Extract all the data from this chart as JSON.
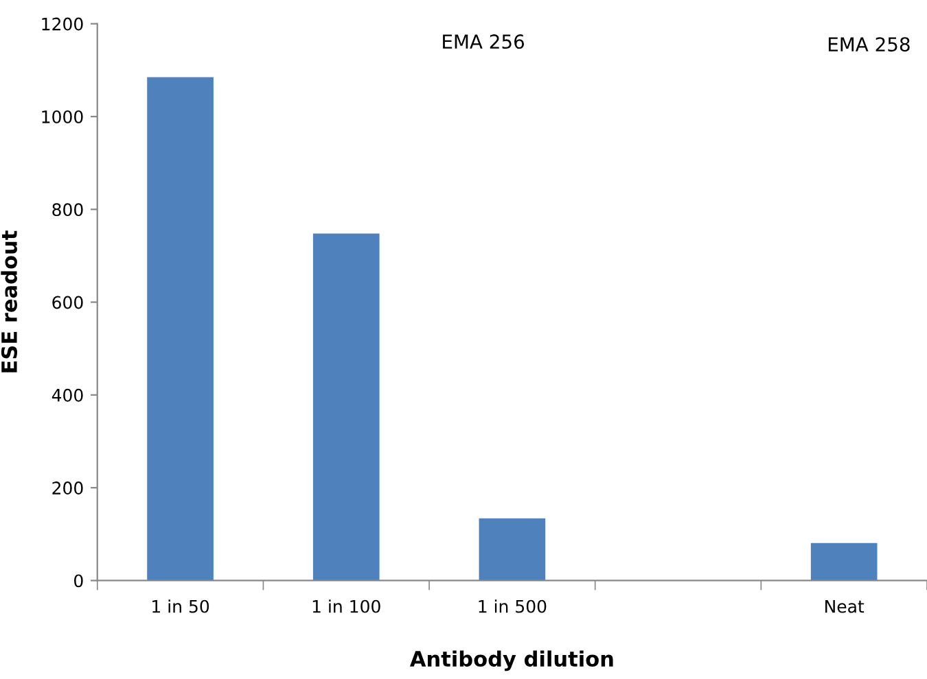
{
  "chart_data": {
    "type": "bar",
    "xlabel": "Antibody dilution",
    "ylabel": "ESE readout",
    "categories": [
      "1 in 50",
      "1 in 100",
      "1 in 500",
      null,
      "Neat"
    ],
    "values": [
      1085,
      748,
      134,
      null,
      81
    ],
    "color": "#4f81bd",
    "ylim": [
      0,
      1200
    ],
    "yticks": [
      0,
      200,
      400,
      600,
      800,
      1000,
      1200
    ],
    "annotations": [
      "EMA 256",
      "EMA 258"
    ],
    "grid": false,
    "legend": false
  }
}
